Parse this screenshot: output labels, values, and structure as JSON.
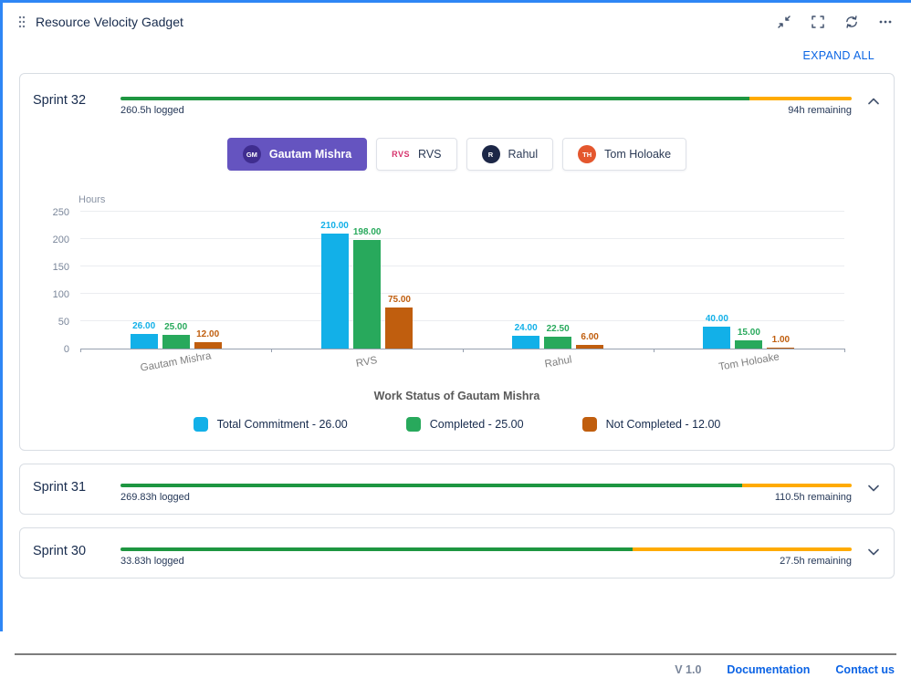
{
  "colors": {
    "accent_blue": "#0c66e4",
    "bar_blue": "#12b0e8",
    "bar_green": "#28a95c",
    "bar_orange": "#c05e0e",
    "progress_green": "#1e9641",
    "progress_amber": "#ffab00",
    "tab_selected_purple": "#6554c0"
  },
  "header": {
    "title": "Resource Velocity Gadget"
  },
  "expand_all_label": "EXPAND ALL",
  "sprints": [
    {
      "name": "Sprint 32",
      "logged": "260.5h logged",
      "remaining": "94h remaining",
      "green_pct": 86,
      "expanded": true
    },
    {
      "name": "Sprint 31",
      "logged": "269.83h logged",
      "remaining": "110.5h remaining",
      "green_pct": 85,
      "expanded": false
    },
    {
      "name": "Sprint 30",
      "logged": "33.83h logged",
      "remaining": "27.5h remaining",
      "green_pct": 70,
      "expanded": false
    }
  ],
  "member_tabs": [
    {
      "label": "Gautam Mishra",
      "initials": "GM",
      "icon_shape": "circle",
      "icon_bg": "#3f2d8f",
      "selected": true
    },
    {
      "label": "RVS",
      "initials": "RVS",
      "icon_shape": "text",
      "icon_color": "#d6336c",
      "selected": false
    },
    {
      "label": "Rahul",
      "initials": "R",
      "icon_shape": "circle",
      "icon_bg": "#1c2747",
      "selected": false
    },
    {
      "label": "Tom Holoake",
      "initials": "TH",
      "icon_shape": "circle",
      "icon_bg": "#e4572e",
      "selected": false
    }
  ],
  "chart_data": {
    "type": "bar",
    "categories": [
      "Gautam Mishra",
      "RVS",
      "Rahul",
      "Tom Holoake"
    ],
    "series": [
      {
        "name": "Total Commitment",
        "color": "#12b0e8",
        "values": [
          26,
          210,
          24,
          40
        ]
      },
      {
        "name": "Completed",
        "color": "#28a95c",
        "values": [
          25,
          198,
          22.5,
          15
        ]
      },
      {
        "name": "Not Completed",
        "color": "#c05e0e",
        "values": [
          12,
          75,
          6,
          1
        ]
      }
    ],
    "title": "Work Status of Gautam Mishra",
    "xlabel": "",
    "ylabel": "Hours",
    "ylim": [
      0,
      250
    ],
    "yticks": [
      0,
      50,
      100,
      150,
      200,
      250
    ],
    "grid": true,
    "legend_position": "bottom"
  },
  "legend": [
    {
      "label": "Total Commitment - 26.00",
      "color": "#12b0e8"
    },
    {
      "label": "Completed  - 25.00",
      "color": "#28a95c"
    },
    {
      "label": "Not Completed  - 12.00",
      "color": "#c05e0e"
    }
  ],
  "footer": {
    "version": "V 1.0",
    "documentation_label": "Documentation",
    "contact_label": "Contact us"
  }
}
